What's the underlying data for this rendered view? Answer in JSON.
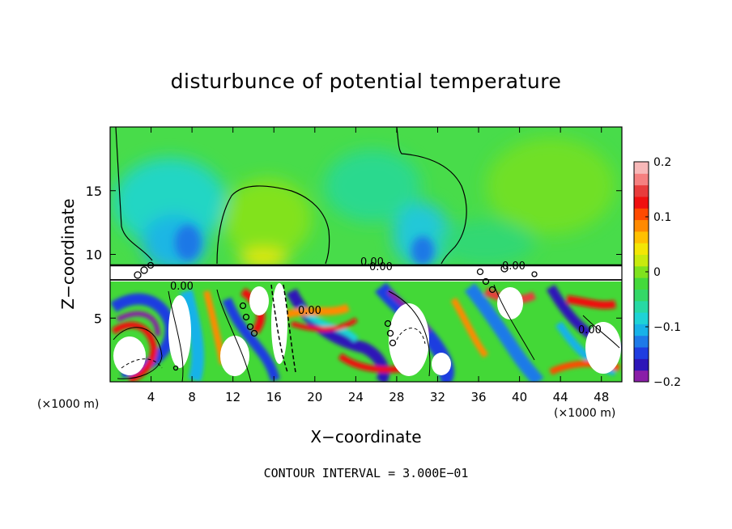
{
  "chart_data": {
    "type": "heatmap",
    "title": "disturbunce of potential temperature",
    "xlabel": "X−coordinate",
    "ylabel": "Z−coordinate",
    "x_unit_left": "(×1000 m)",
    "x_unit_right": "(×1000 m)",
    "contour_interval_text": "CONTOUR INTERVAL = 3.000E−01",
    "x_ticks": [
      "4",
      "8",
      "12",
      "16",
      "20",
      "24",
      "28",
      "32",
      "36",
      "40",
      "44",
      "48"
    ],
    "x_tick_values": [
      4,
      8,
      12,
      16,
      20,
      24,
      28,
      32,
      36,
      40,
      44,
      48
    ],
    "y_ticks": [
      "5",
      "10",
      "15"
    ],
    "y_tick_values": [
      5,
      10,
      15
    ],
    "xlim": [
      0,
      50
    ],
    "ylim": [
      0,
      20
    ],
    "colorbar": {
      "range": [
        -0.2,
        0.2
      ],
      "tick_labels": [
        "0.2",
        "0.1",
        "0",
        "−0.1",
        "−0.2"
      ],
      "tick_values": [
        0.2,
        0.1,
        0,
        -0.1,
        -0.2
      ],
      "colors": [
        "#8a1fa8",
        "#2d16b8",
        "#1f3de0",
        "#1e7ae8",
        "#17b2e8",
        "#1ed3d6",
        "#27d9a4",
        "#34d867",
        "#44d93b",
        "#7fe21e",
        "#c8ea0e",
        "#f3e605",
        "#ffc000",
        "#ff8a00",
        "#ff4a00",
        "#f01010",
        "#e83c3c",
        "#f58080",
        "#f7b8b8"
      ]
    },
    "contour_labels": [
      "0.00",
      "0.00",
      "0.00",
      "0.00",
      "0.00",
      "0.00",
      "0.00"
    ],
    "layer_boundaries_z": [
      8.0,
      9.2
    ]
  }
}
